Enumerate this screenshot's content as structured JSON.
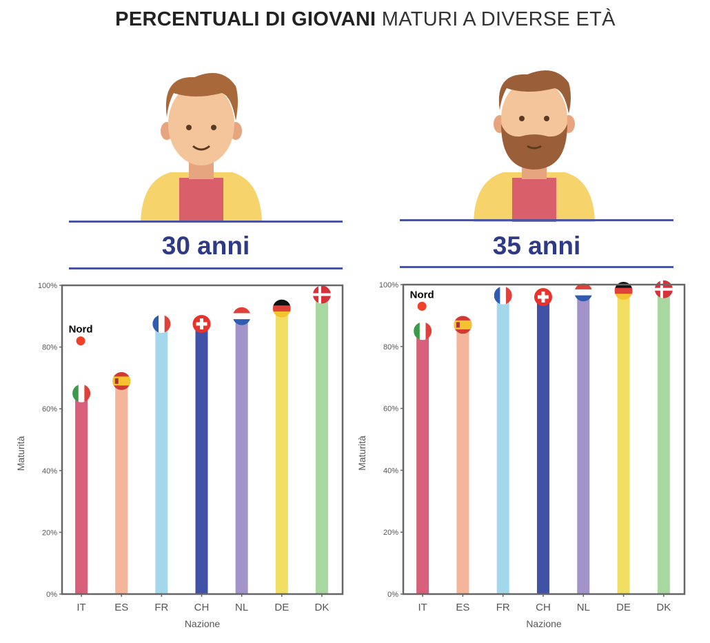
{
  "title": {
    "bold": "PERCENTUALI DI GIOVANI",
    "light": "MATURI A DIVERSE ETÀ"
  },
  "panels": [
    {
      "header": "30 anni",
      "avatar": "young-man-no-beard"
    },
    {
      "header": "35 anni",
      "avatar": "man-with-beard"
    }
  ],
  "chart_data": [
    {
      "type": "bar",
      "title": "30 anni",
      "xlabel": "Nazione",
      "ylabel": "Maturità",
      "ylim": [
        0,
        100
      ],
      "yticks": [
        "0%",
        "20%",
        "40%",
        "60%",
        "80%",
        "100%"
      ],
      "categories": [
        "IT",
        "ES",
        "FR",
        "CH",
        "NL",
        "DE",
        "DK"
      ],
      "values": [
        65,
        69,
        87.5,
        87.5,
        90,
        92.5,
        97
      ],
      "colors": [
        "#d9607a",
        "#f4b59a",
        "#a3d8ec",
        "#3f52a5",
        "#a393c9",
        "#f2de62",
        "#a8d8a0"
      ],
      "annotation": {
        "label": "Nord",
        "category": "IT",
        "value": 82
      }
    },
    {
      "type": "bar",
      "title": "35 anni",
      "xlabel": "Nazione",
      "ylabel": "Maturità",
      "ylim": [
        0,
        100
      ],
      "yticks": [
        "0%",
        "20%",
        "40%",
        "60%",
        "80%",
        "100%"
      ],
      "categories": [
        "IT",
        "ES",
        "FR",
        "CH",
        "NL",
        "DE",
        "DK"
      ],
      "values": [
        85,
        87,
        96.5,
        96,
        97.5,
        98,
        98.5
      ],
      "colors": [
        "#d9607a",
        "#f4b59a",
        "#a3d8ec",
        "#3f52a5",
        "#a393c9",
        "#f2de62",
        "#a8d8a0"
      ],
      "annotation": {
        "label": "Nord",
        "category": "IT",
        "value": 93
      }
    }
  ]
}
